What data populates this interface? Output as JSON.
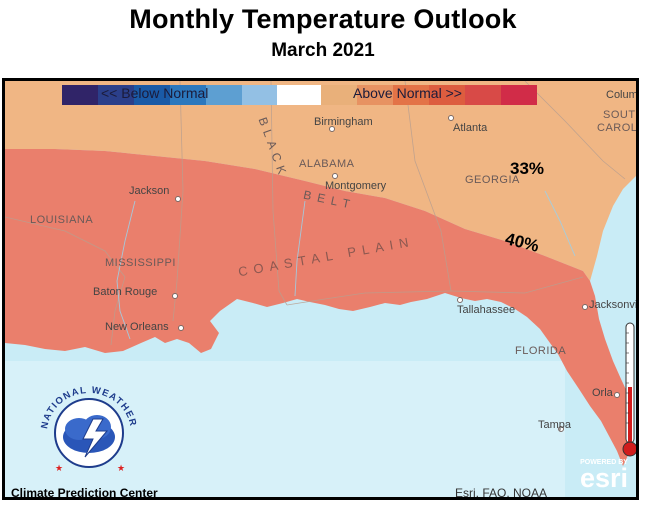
{
  "title": "Monthly Temperature Outlook",
  "subtitle": "March 2021",
  "legend": {
    "below_label": "<<  Below Normal",
    "above_label": "Above Normal      >>",
    "below_colors": [
      "#302468",
      "#2b3f8a",
      "#1a5aa6",
      "#2c78bd",
      "#5d9fd2",
      "#93c0e4"
    ],
    "neutral_color": "#ffffff",
    "above_colors": [
      "#e9b07a",
      "#e79262",
      "#e37347",
      "#dd5d3f",
      "#d84a47",
      "#d12c48"
    ]
  },
  "probabilities": [
    {
      "label": "33%",
      "color": "#f0b684"
    },
    {
      "label": "40%",
      "color": "#ea7f6c"
    }
  ],
  "places": {
    "birmingham": "Birmingham",
    "atlanta": "Atlanta",
    "montgomery": "Montgomery",
    "jackson": "Jackson",
    "baton_rouge": "Baton Rouge",
    "new_orleans": "New Orleans",
    "tallahassee": "Tallahassee",
    "jacksonville": "Jacksonvil",
    "orlando": "Orla",
    "tampa": "Tampa",
    "columbia": "Colum"
  },
  "regions": {
    "alabama": "ALABAMA",
    "georgia": "GEORGIA",
    "louisiana": "LOUISIANA",
    "mississippi": "MISSISSIPPI",
    "florida": "FLORIDA",
    "south_carolina_1": "SOUTH",
    "south_carolina_2": "CAROLI",
    "coastal_plain": "COASTAL PLAIN",
    "black_belt_1": "BLACK",
    "black_belt_2": "BELT"
  },
  "cpc_label": "Climate Prediction Center",
  "credit": "Esri, FAO, NOAA",
  "esri_small": "POWERED BY",
  "esri_big": "esri",
  "logo_text": "NATIONAL WEATHER SERVICE",
  "icons": [
    "nws-logo-icon",
    "thermometer-icon",
    "city-dot-icon"
  ]
}
